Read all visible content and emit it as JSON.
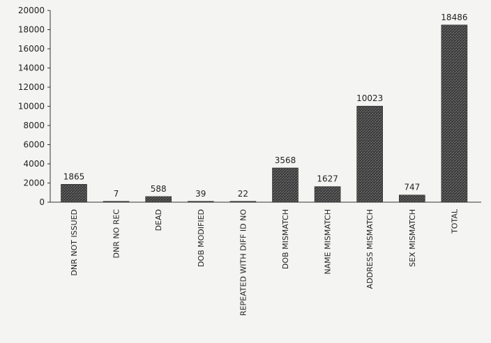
{
  "chart_data": {
    "type": "bar",
    "categories": [
      "DNR NOT ISSUED",
      "DNR NO REC",
      "DEAD",
      "DOB MODIFIED",
      "REPEATED WITH DIFF ID NO",
      "DOB MISMATCH",
      "NAME MISMATCH",
      "ADDRESS MISMATCH",
      "SEX MISMATCH",
      "TOTAL"
    ],
    "values": [
      1865,
      7,
      588,
      39,
      22,
      3568,
      1627,
      10023,
      747,
      18486
    ],
    "data_labels": [
      "1865",
      "7",
      "588",
      "39",
      "22",
      "3568",
      "1627",
      "10023",
      "747",
      "18486"
    ],
    "yticks": [
      "0",
      "2000",
      "4000",
      "6000",
      "8000",
      "10000",
      "12000",
      "14000",
      "16000",
      "18000",
      "20000"
    ],
    "ylim": [
      0,
      20000
    ],
    "title": "",
    "xlabel": "",
    "ylabel": "",
    "grid": false,
    "bar_color": "#4a4a4a"
  }
}
